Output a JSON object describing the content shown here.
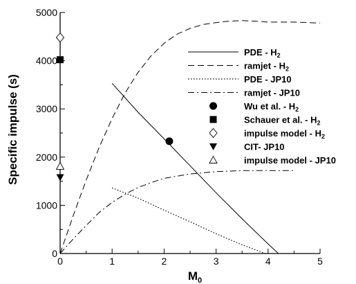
{
  "chart_data": {
    "type": "line",
    "xlabel": "M",
    "xlabel_sub": "0",
    "ylabel": "Specific impulse (s)",
    "xlim": [
      0,
      5
    ],
    "ylim": [
      0,
      5000
    ],
    "x_ticks": [
      "0",
      "1",
      "2",
      "3",
      "4",
      "5"
    ],
    "y_ticks": [
      "0",
      "1000",
      "2000",
      "3000",
      "4000",
      "5000"
    ],
    "x_tick_values": [
      0,
      1,
      2,
      3,
      4,
      5
    ],
    "y_tick_values": [
      0,
      1000,
      2000,
      3000,
      4000,
      5000
    ],
    "grid": false,
    "legend_position": "top-right",
    "series": [
      {
        "name": "PDE - H",
        "name_sub": "2",
        "style": "solid",
        "marker": "line",
        "x": [
          1.0,
          1.5,
          2.0,
          2.5,
          3.0,
          3.5,
          4.0,
          4.2
        ],
        "y": [
          3530,
          2930,
          2380,
          1820,
          1260,
          720,
          200,
          0
        ]
      },
      {
        "name": "ramjet - H",
        "name_sub": "2",
        "style": "dashed",
        "marker": "line",
        "x": [
          0.0,
          0.25,
          0.5,
          0.75,
          1.0,
          1.25,
          1.5,
          1.75,
          2.0,
          2.25,
          2.5,
          2.75,
          3.0,
          3.25,
          3.5,
          3.75,
          4.0,
          4.25,
          4.5,
          4.75,
          5.0
        ],
        "y": [
          0,
          780,
          1520,
          2200,
          2800,
          3330,
          3760,
          4100,
          4360,
          4550,
          4670,
          4750,
          4790,
          4820,
          4830,
          4820,
          4800,
          4800,
          4800,
          4790,
          4780
        ]
      },
      {
        "name": "PDE - JP10",
        "name_sub": "",
        "style": "dotted",
        "marker": "line",
        "x": [
          1.0,
          1.5,
          2.0,
          2.5,
          3.0,
          3.5,
          3.95
        ],
        "y": [
          1360,
          1150,
          900,
          660,
          410,
          180,
          0
        ]
      },
      {
        "name": "ramjet - JP10",
        "name_sub": "",
        "style": "dashdot",
        "marker": "line",
        "x": [
          0.0,
          0.25,
          0.5,
          0.75,
          1.0,
          1.25,
          1.5,
          1.75,
          2.0,
          2.5,
          3.0,
          3.5,
          4.0,
          4.5
        ],
        "y": [
          0,
          300,
          580,
          850,
          1060,
          1230,
          1370,
          1470,
          1560,
          1650,
          1700,
          1720,
          1720,
          1720
        ]
      },
      {
        "name": "Wu et al. - H",
        "name_sub": "2",
        "marker": "circle-filled",
        "x": [
          2.1
        ],
        "y": [
          2330
        ]
      },
      {
        "name": "Schauer et al. - H",
        "name_sub": "2",
        "marker": "square-filled",
        "x": [
          0.0
        ],
        "y": [
          4020
        ]
      },
      {
        "name": "impulse model - H",
        "name_sub": "2",
        "marker": "diamond-open",
        "x": [
          0.0
        ],
        "y": [
          4480
        ]
      },
      {
        "name": "CIT-  JP10",
        "name_sub": "",
        "marker": "triangle-down-filled",
        "x": [
          0.0
        ],
        "y": [
          1580
        ]
      },
      {
        "name": "impulse model - JP10",
        "name_sub": "",
        "marker": "triangle-up-open",
        "x": [
          0.0
        ],
        "y": [
          1810
        ]
      }
    ]
  }
}
